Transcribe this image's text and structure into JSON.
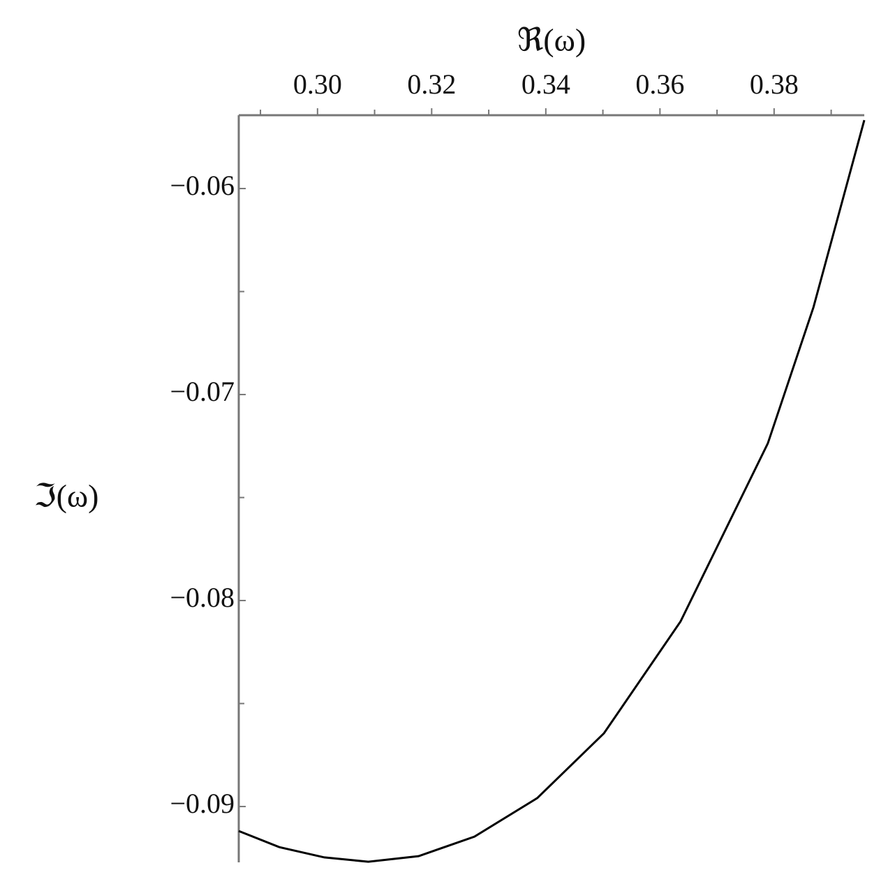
{
  "chart_data": {
    "type": "line",
    "x_label": "ℜ(ω)",
    "y_label": "ℑ(ω)",
    "x": [
      0.2862,
      0.2933,
      0.3012,
      0.3089,
      0.3177,
      0.3275,
      0.3385,
      0.3502,
      0.3636,
      0.3789,
      0.3869,
      0.3958
    ],
    "series": [
      {
        "color": "#000000",
        "values": [
          -0.09119,
          -0.09197,
          -0.09247,
          -0.09268,
          -0.09241,
          -0.09146,
          -0.08959,
          -0.08644,
          -0.08102,
          -0.07237,
          -0.06576,
          -0.05668
        ]
      }
    ],
    "xlim": [
      0.2862,
      0.3958
    ],
    "ylim": [
      -0.09271,
      -0.05644
    ],
    "xticks": [
      {
        "value": 0.3,
        "label": "0.30"
      },
      {
        "value": 0.32,
        "label": "0.32"
      },
      {
        "value": 0.34,
        "label": "0.34"
      },
      {
        "value": 0.36,
        "label": "0.36"
      },
      {
        "value": 0.38,
        "label": "0.38"
      }
    ],
    "xminorticks": [
      0.29,
      0.31,
      0.33,
      0.35,
      0.37,
      0.39
    ],
    "yticks": [
      {
        "value": -0.06,
        "label": "−0.06"
      },
      {
        "value": -0.07,
        "label": "−0.07"
      },
      {
        "value": -0.08,
        "label": "−0.08"
      },
      {
        "value": -0.09,
        "label": "−0.09"
      }
    ],
    "yminorticks": [
      -0.065,
      -0.075,
      -0.085
    ],
    "x_axis_position": "top",
    "grid": false
  }
}
